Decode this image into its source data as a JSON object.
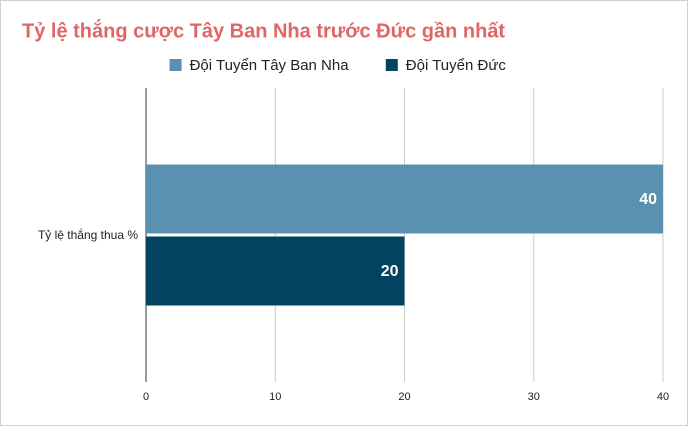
{
  "chart_data": {
    "type": "bar",
    "orientation": "horizontal",
    "title": "Tỷ lệ thắng cược Tây Ban Nha trước Đức gần nhất",
    "categories": [
      "Tỷ lệ thắng thua %"
    ],
    "series": [
      {
        "name": "Đội Tuyển Tây Ban Nha",
        "color": "#5b91b0",
        "values": [
          40
        ]
      },
      {
        "name": "Đội Tuyển Đức",
        "color": "#02435f",
        "values": [
          20
        ]
      }
    ],
    "xlim": [
      0,
      40
    ],
    "xticks": [
      0,
      10,
      20,
      30,
      40
    ],
    "grid": true,
    "legend": "top"
  }
}
